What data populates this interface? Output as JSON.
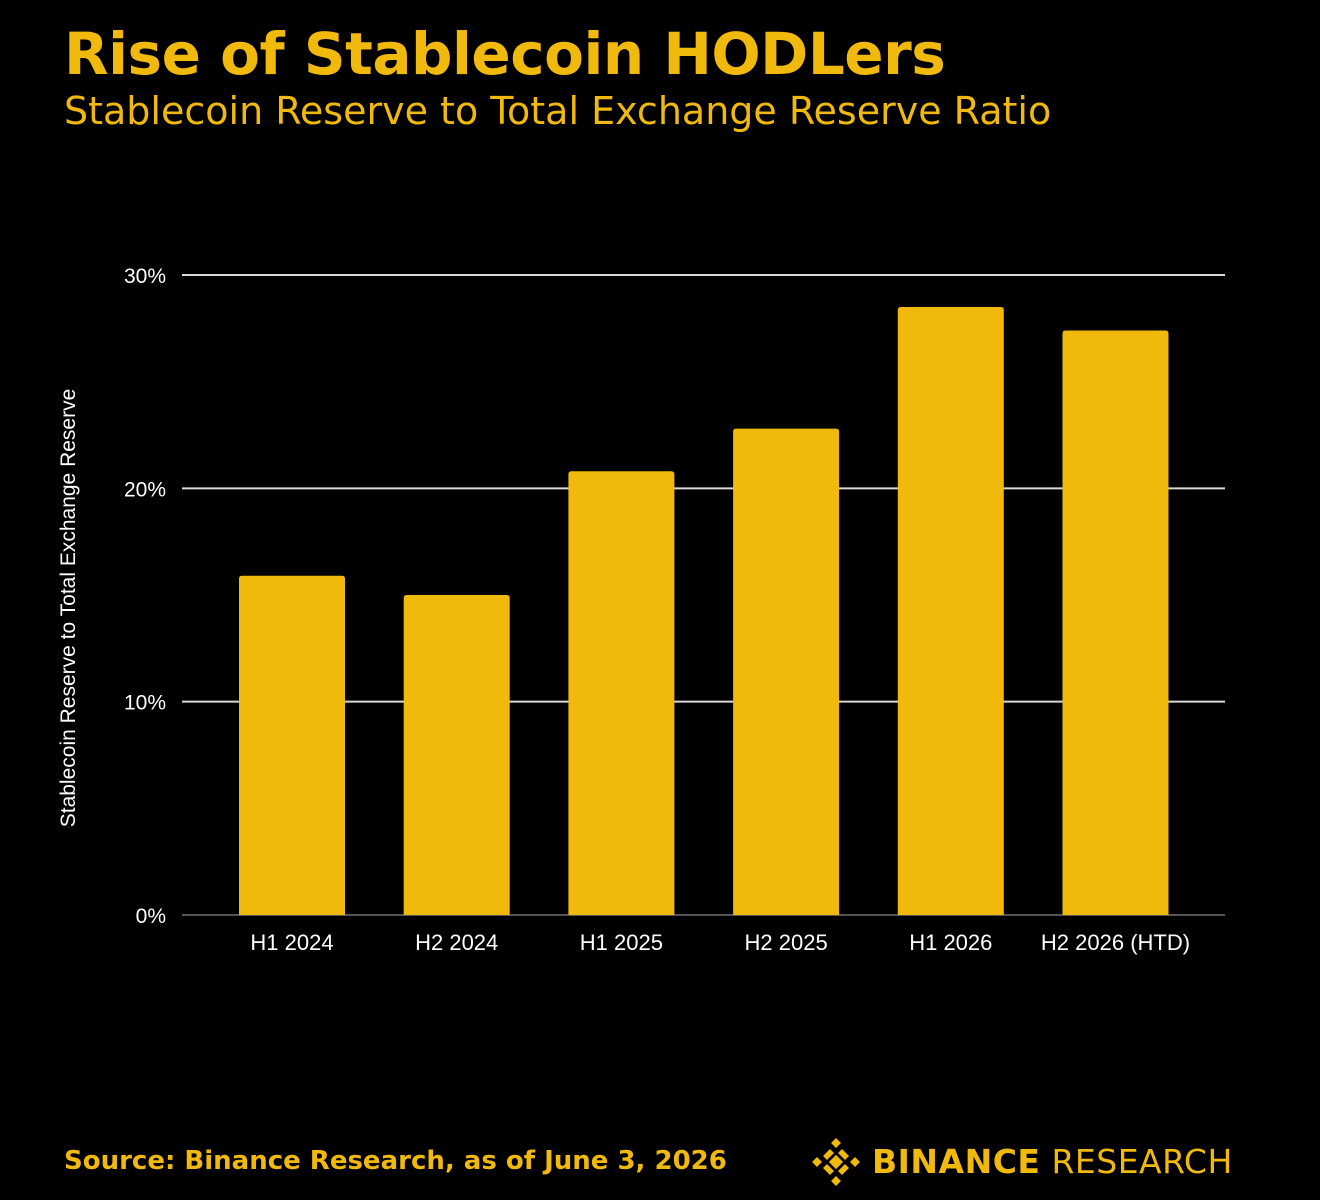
{
  "header": {
    "title": "Rise of Stablecoin HODLers",
    "subtitle": "Stablecoin Reserve to Total Exchange Reserve Ratio"
  },
  "footer": {
    "source": "Source: Binance Research, as of June 3, 2026",
    "brand_bold": "BINANCE",
    "brand_light": "RESEARCH"
  },
  "colors": {
    "accent": "#F0B90B",
    "background": "#000000",
    "axis_text": "#FFFFFF",
    "gridline": "#D9D9D9",
    "baseline": "#555555"
  },
  "chart_data": {
    "type": "bar",
    "title": "",
    "xlabel": "",
    "ylabel": "Stablecoin Reserve to Total Exchange Reserve",
    "categories": [
      "H1 2024",
      "H2 2024",
      "H1 2025",
      "H2 2025",
      "H1 2026",
      "H2 2026 (HTD)"
    ],
    "values": [
      15.9,
      15.0,
      20.8,
      22.8,
      28.5,
      27.4
    ],
    "ylim": [
      0,
      30
    ],
    "yticks": [
      0,
      10,
      20,
      30
    ],
    "ytick_labels": [
      "0%",
      "10%",
      "20%",
      "30%"
    ],
    "grid": true,
    "legend": "none"
  }
}
